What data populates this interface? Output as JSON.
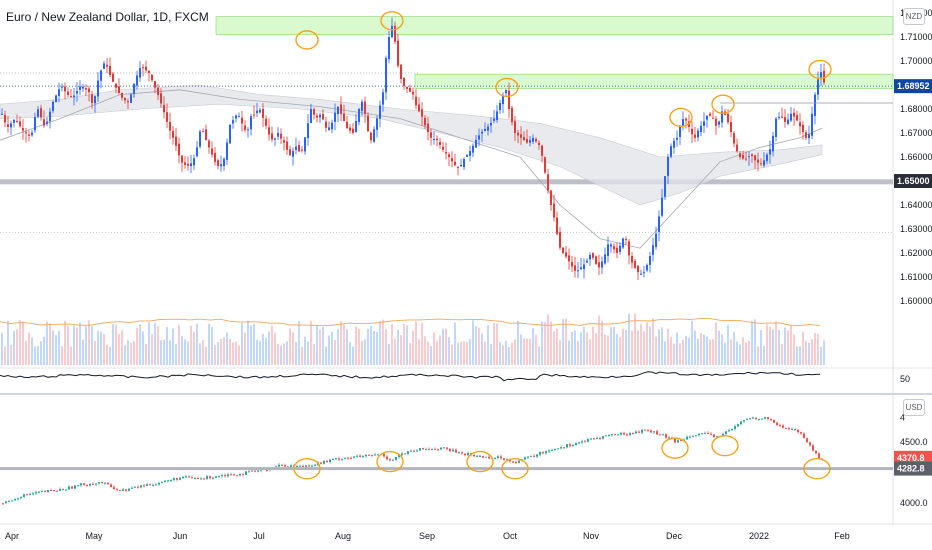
{
  "window": {
    "title": "Euro / New Zealand Dollar, 1D, FXCM",
    "currency_top": "NZD",
    "currency_bottom": "USD"
  },
  "colors": {
    "up": "#26a69a",
    "down": "#ef5350",
    "up_candle": "#2962ff",
    "down_candle": "#e53935",
    "zone": "#b9f6a7",
    "circle": "#f7a21b",
    "support": "#b2b5be",
    "price_tag": "#0d47a1",
    "sp_tag": "#ef5350",
    "sp_grey": "#5d606b"
  },
  "chart_data": [
    {
      "type": "candlestick",
      "title": "Euro / New Zealand Dollar, 1D, FXCM",
      "ylim": [
        1.595,
        1.725
      ],
      "y_ticks": [
        "1.72000",
        "1.71000",
        "1.70000",
        "1.69000",
        "1.68000",
        "1.67000",
        "1.66000",
        "1.65000",
        "1.64000",
        "1.63000",
        "1.62000",
        "1.61000",
        "1.60000"
      ],
      "x_ticks": [
        "Apr",
        "May",
        "Jun",
        "Jul",
        "Aug",
        "Sep",
        "Oct",
        "Nov",
        "Dec",
        "2022",
        "Feb"
      ],
      "last_price": "1.68952",
      "support_level": "1.65000",
      "resistance_zones": [
        [
          1.711,
          1.7185
        ],
        [
          1.6885,
          1.6945
        ]
      ],
      "swing_highs_circled": [
        "Jul",
        "Aug",
        "Oct",
        "Dec",
        "Dec",
        "Jan"
      ],
      "path_anchors": [
        [
          1,
          1.678
        ],
        [
          6,
          1.672
        ],
        [
          14,
          1.676
        ],
        [
          22,
          1.671
        ],
        [
          30,
          1.668
        ],
        [
          36,
          1.681
        ],
        [
          44,
          1.672
        ],
        [
          52,
          1.683
        ],
        [
          60,
          1.69
        ],
        [
          66,
          1.686
        ],
        [
          72,
          1.685
        ],
        [
          80,
          1.69
        ],
        [
          88,
          1.687
        ],
        [
          92,
          1.681
        ],
        [
          98,
          1.694
        ],
        [
          104,
          1.7
        ],
        [
          110,
          1.693
        ],
        [
          116,
          1.688
        ],
        [
          122,
          1.684
        ],
        [
          128,
          1.683
        ],
        [
          134,
          1.692
        ],
        [
          140,
          1.698
        ],
        [
          148,
          1.695
        ],
        [
          156,
          1.687
        ],
        [
          162,
          1.68
        ],
        [
          168,
          1.672
        ],
        [
          174,
          1.666
        ],
        [
          180,
          1.658
        ],
        [
          186,
          1.656
        ],
        [
          192,
          1.658
        ],
        [
          196,
          1.664
        ],
        [
          198,
          1.67
        ],
        [
          201,
          1.672
        ],
        [
          204,
          1.668
        ],
        [
          208,
          1.664
        ],
        [
          212,
          1.66
        ],
        [
          216,
          1.656
        ],
        [
          220,
          1.657
        ],
        [
          224,
          1.66
        ],
        [
          226,
          1.666
        ],
        [
          228,
          1.673
        ],
        [
          230,
          1.674
        ],
        [
          233,
          1.676
        ],
        [
          236,
          1.678
        ],
        [
          238,
          1.677
        ],
        [
          240,
          1.675
        ],
        [
          243,
          1.672
        ],
        [
          246,
          1.67
        ],
        [
          248,
          1.673
        ],
        [
          250,
          1.677
        ],
        [
          252,
          1.679
        ],
        [
          254,
          1.676
        ],
        [
          257,
          1.681
        ],
        [
          260,
          1.679
        ],
        [
          263,
          1.675
        ],
        [
          266,
          1.672
        ],
        [
          269,
          1.668
        ],
        [
          272,
          1.667
        ],
        [
          275,
          1.668
        ],
        [
          278,
          1.671
        ],
        [
          281,
          1.666
        ],
        [
          283,
          1.666
        ],
        [
          286,
          1.663
        ],
        [
          290,
          1.66
        ],
        [
          294,
          1.665
        ],
        [
          300,
          1.661
        ],
        [
          305,
          1.67
        ],
        [
          310,
          1.68
        ],
        [
          315,
          1.676
        ],
        [
          320,
          1.678
        ],
        [
          326,
          1.671
        ],
        [
          332,
          1.675
        ],
        [
          336,
          1.682
        ],
        [
          341,
          1.677
        ],
        [
          346,
          1.672
        ],
        [
          352,
          1.67
        ],
        [
          358,
          1.68
        ],
        [
          362,
          1.684
        ],
        [
          366,
          1.672
        ],
        [
          370,
          1.667
        ],
        [
          376,
          1.676
        ],
        [
          382,
          1.687
        ],
        [
          386,
          1.706
        ],
        [
          389,
          1.712
        ],
        [
          392,
          1.716
        ],
        [
          395,
          1.704
        ],
        [
          398,
          1.695
        ],
        [
          402,
          1.69
        ],
        [
          407,
          1.688
        ],
        [
          412,
          1.686
        ],
        [
          416,
          1.68
        ],
        [
          420,
          1.678
        ],
        [
          425,
          1.672
        ],
        [
          430,
          1.668
        ],
        [
          436,
          1.667
        ],
        [
          442,
          1.663
        ],
        [
          448,
          1.66
        ],
        [
          453,
          1.657
        ],
        [
          458,
          1.655
        ],
        [
          464,
          1.66
        ],
        [
          470,
          1.663
        ],
        [
          476,
          1.668
        ],
        [
          482,
          1.671
        ],
        [
          488,
          1.673
        ],
        [
          493,
          1.676
        ],
        [
          497,
          1.68
        ],
        [
          501,
          1.685
        ],
        [
          505,
          1.688
        ],
        [
          507,
          1.682
        ],
        [
          510,
          1.676
        ],
        [
          514,
          1.67
        ],
        [
          520,
          1.668
        ],
        [
          526,
          1.666
        ],
        [
          532,
          1.668
        ],
        [
          538,
          1.665
        ],
        [
          542,
          1.659
        ],
        [
          546,
          1.648
        ],
        [
          550,
          1.64
        ],
        [
          554,
          1.633
        ],
        [
          558,
          1.623
        ],
        [
          562,
          1.62
        ],
        [
          566,
          1.618
        ],
        [
          570,
          1.615
        ],
        [
          575,
          1.612
        ],
        [
          580,
          1.614
        ],
        [
          585,
          1.616
        ],
        [
          590,
          1.62
        ],
        [
          594,
          1.616
        ],
        [
          598,
          1.614
        ],
        [
          603,
          1.618
        ],
        [
          608,
          1.625
        ],
        [
          612,
          1.622
        ],
        [
          616,
          1.62
        ],
        [
          620,
          1.624
        ],
        [
          624,
          1.628
        ],
        [
          628,
          1.619
        ],
        [
          632,
          1.615
        ],
        [
          637,
          1.612
        ],
        [
          642,
          1.611
        ],
        [
          646,
          1.615
        ],
        [
          650,
          1.62
        ],
        [
          655,
          1.628
        ],
        [
          660,
          1.64
        ],
        [
          664,
          1.652
        ],
        [
          667,
          1.66
        ],
        [
          671,
          1.666
        ],
        [
          676,
          1.668
        ],
        [
          681,
          1.676
        ],
        [
          686,
          1.675
        ],
        [
          690,
          1.67
        ],
        [
          694,
          1.668
        ],
        [
          698,
          1.672
        ],
        [
          702,
          1.674
        ],
        [
          707,
          1.678
        ],
        [
          712,
          1.676
        ],
        [
          716,
          1.672
        ],
        [
          721,
          1.679
        ],
        [
          725,
          1.677
        ],
        [
          729,
          1.672
        ],
        [
          734,
          1.664
        ],
        [
          739,
          1.66
        ],
        [
          744,
          1.659
        ],
        [
          750,
          1.661
        ],
        [
          755,
          1.658
        ],
        [
          761,
          1.657
        ],
        [
          766,
          1.661
        ],
        [
          770,
          1.664
        ],
        [
          775,
          1.676
        ],
        [
          780,
          1.677
        ],
        [
          785,
          1.674
        ],
        [
          790,
          1.678
        ],
        [
          795,
          1.676
        ],
        [
          800,
          1.672
        ],
        [
          805,
          1.668
        ],
        [
          809,
          1.67
        ],
        [
          812,
          1.682
        ],
        [
          816,
          1.69
        ],
        [
          819,
          1.697
        ],
        [
          822,
          1.692
        ],
        [
          824,
          1.69
        ]
      ]
    },
    {
      "type": "candlestick",
      "title": "",
      "ylim": [
        3950,
        4800
      ],
      "y_ticks": [
        "4500.0",
        "4000.0"
      ],
      "last_price": "4370.8",
      "level_tag": "4282.8",
      "support_level": "4282.8",
      "swing_lows_circled": [
        "Jul",
        "Aug",
        "Sep",
        "Oct",
        "Dec",
        "Dec",
        "Jan"
      ],
      "path_anchors": [
        [
          2,
          4000
        ],
        [
          20,
          4060
        ],
        [
          40,
          4090
        ],
        [
          60,
          4110
        ],
        [
          80,
          4150
        ],
        [
          100,
          4170
        ],
        [
          120,
          4100
        ],
        [
          130,
          4120
        ],
        [
          140,
          4140
        ],
        [
          160,
          4170
        ],
        [
          180,
          4210
        ],
        [
          200,
          4200
        ],
        [
          220,
          4230
        ],
        [
          240,
          4240
        ],
        [
          260,
          4270
        ],
        [
          280,
          4310
        ],
        [
          300,
          4300
        ],
        [
          320,
          4330
        ],
        [
          340,
          4370
        ],
        [
          360,
          4380
        ],
        [
          380,
          4400
        ],
        [
          390,
          4350
        ],
        [
          400,
          4400
        ],
        [
          420,
          4440
        ],
        [
          440,
          4450
        ],
        [
          460,
          4410
        ],
        [
          480,
          4380
        ],
        [
          500,
          4370
        ],
        [
          515,
          4340
        ],
        [
          530,
          4380
        ],
        [
          550,
          4440
        ],
        [
          570,
          4480
        ],
        [
          590,
          4520
        ],
        [
          610,
          4560
        ],
        [
          630,
          4570
        ],
        [
          645,
          4600
        ],
        [
          660,
          4560
        ],
        [
          675,
          4500
        ],
        [
          690,
          4560
        ],
        [
          700,
          4570
        ],
        [
          715,
          4540
        ],
        [
          730,
          4600
        ],
        [
          745,
          4690
        ],
        [
          760,
          4700
        ],
        [
          770,
          4680
        ],
        [
          780,
          4620
        ],
        [
          795,
          4600
        ],
        [
          805,
          4520
        ],
        [
          812,
          4430
        ],
        [
          818,
          4370
        ],
        [
          822,
          4370
        ]
      ]
    }
  ]
}
